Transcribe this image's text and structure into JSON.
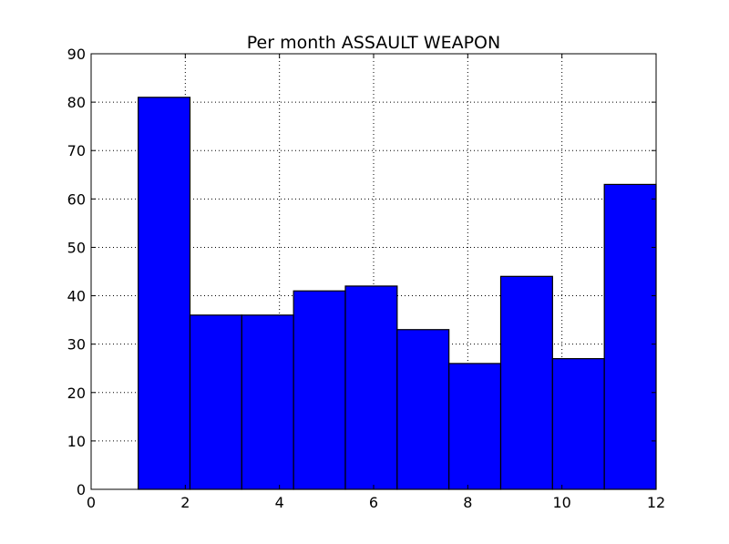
{
  "chart_data": {
    "type": "bar",
    "title": "Per month ASSAULT WEAPON",
    "xlabel": "",
    "ylabel": "",
    "xlim": [
      0,
      12
    ],
    "ylim": [
      0,
      90
    ],
    "x_ticks": [
      0,
      2,
      4,
      6,
      8,
      10,
      12
    ],
    "y_ticks": [
      0,
      10,
      20,
      30,
      40,
      50,
      60,
      70,
      80,
      90
    ],
    "grid": true,
    "bar_color": "#0000ff",
    "bins": [
      {
        "x0": 1.0,
        "x1": 2.1,
        "value": 81
      },
      {
        "x0": 2.1,
        "x1": 3.2,
        "value": 36
      },
      {
        "x0": 3.2,
        "x1": 4.3,
        "value": 36
      },
      {
        "x0": 4.3,
        "x1": 5.4,
        "value": 41
      },
      {
        "x0": 5.4,
        "x1": 6.5,
        "value": 42
      },
      {
        "x0": 6.5,
        "x1": 7.6,
        "value": 33
      },
      {
        "x0": 7.6,
        "x1": 8.7,
        "value": 26
      },
      {
        "x0": 8.7,
        "x1": 9.8,
        "value": 44
      },
      {
        "x0": 9.8,
        "x1": 10.9,
        "value": 27
      },
      {
        "x0": 10.9,
        "x1": 12.0,
        "value": 63
      }
    ]
  }
}
